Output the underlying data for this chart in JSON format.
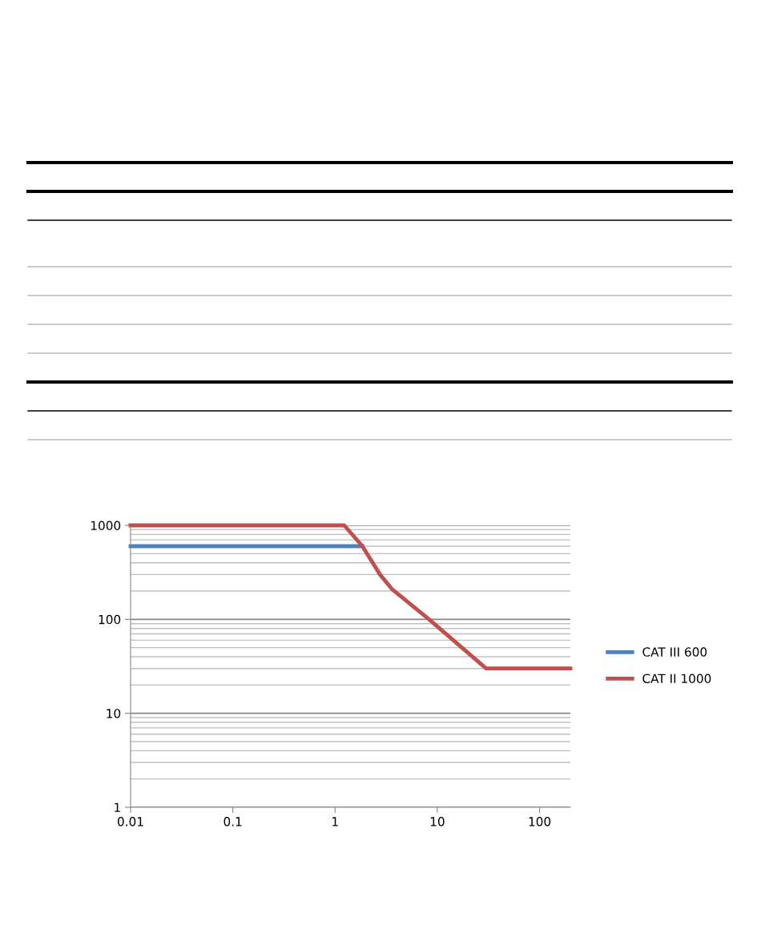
{
  "chart_data": {
    "type": "line",
    "log": "xy",
    "xlim": [
      0.01,
      200
    ],
    "ylim": [
      1,
      1000
    ],
    "xticks": [
      0.01,
      0.1,
      1,
      10,
      100
    ],
    "yticks": [
      1,
      10,
      100,
      1000
    ],
    "grid": "y",
    "legend": "right",
    "marker": "none",
    "line_style": "solid",
    "series": [
      {
        "name": "CAT III 600",
        "color": "#4f81bd",
        "x": [
          0.01,
          1.85
        ],
        "values": [
          600,
          600
        ]
      },
      {
        "name": "CAT II 1000",
        "color": "#c0504d",
        "x": [
          0.01,
          1.23,
          1.85,
          2.75,
          3.6,
          8.3,
          30,
          200
        ],
        "values": [
          1000,
          1000,
          600,
          300,
          210,
          100,
          30,
          30
        ]
      }
    ]
  }
}
